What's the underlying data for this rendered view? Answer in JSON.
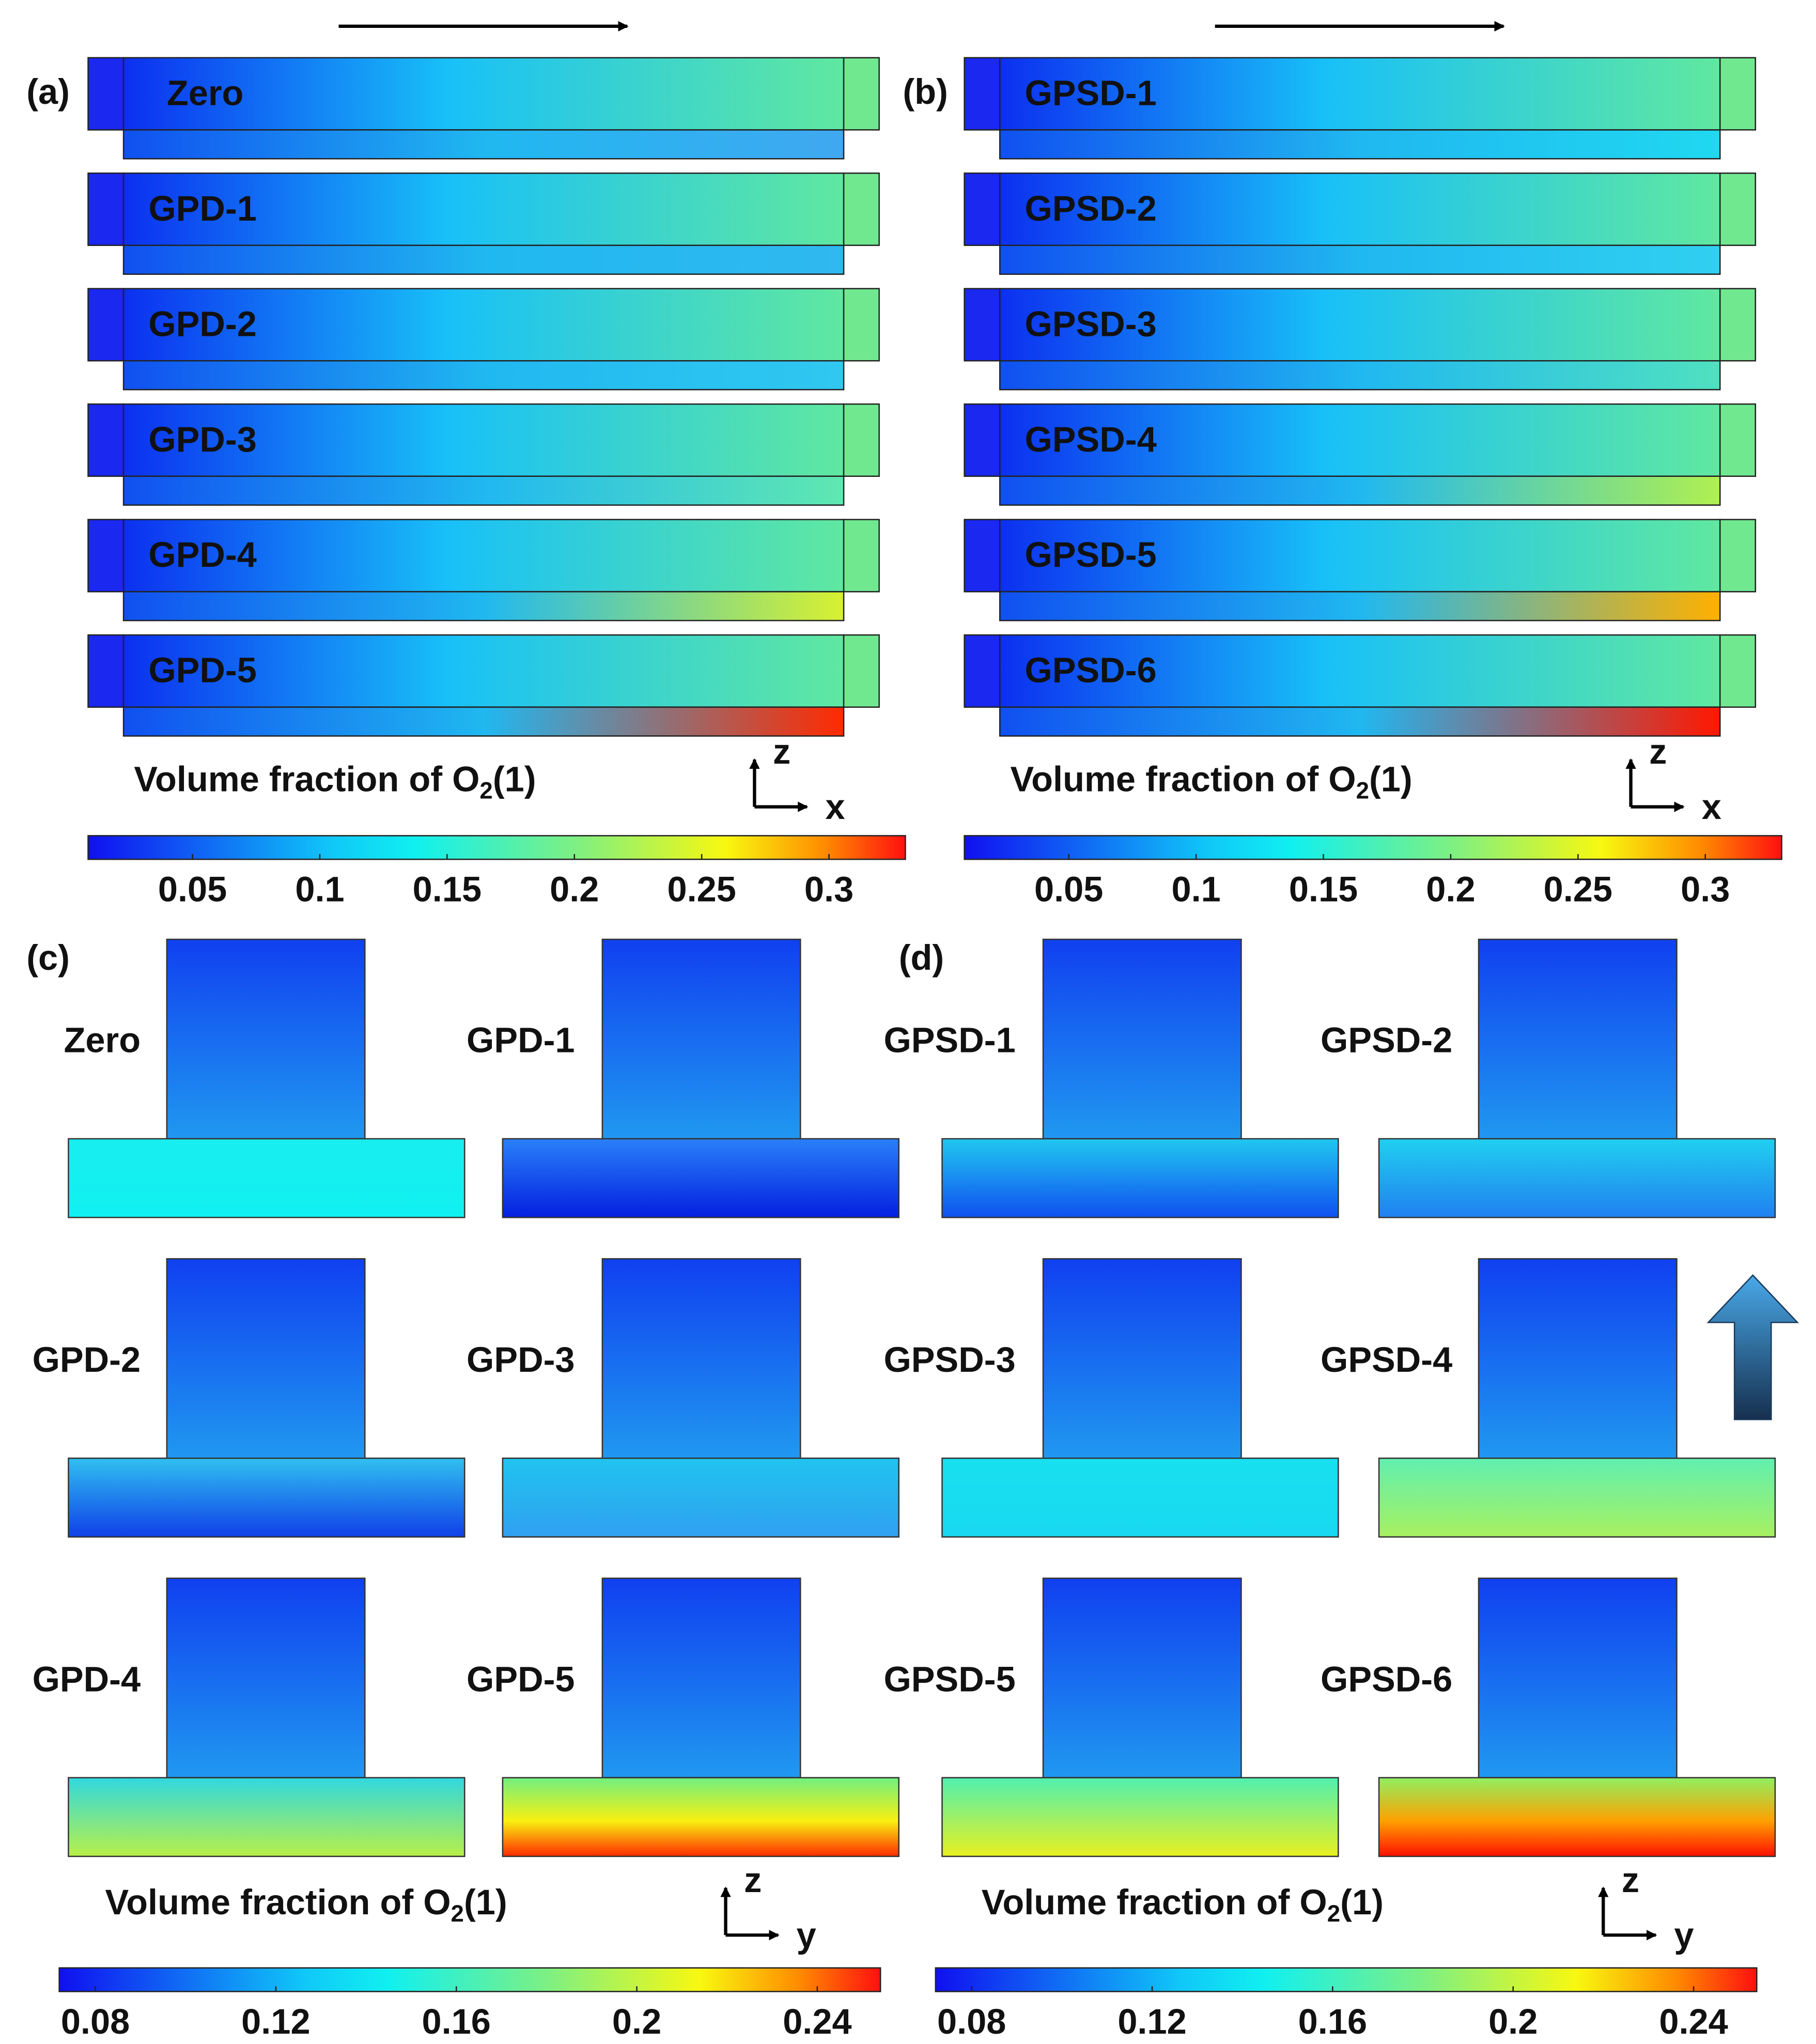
{
  "top_panels": [
    {
      "label": "(a)",
      "rows": [
        "Zero",
        "GPD-1",
        "GPD-2",
        "GPD-3",
        "GPD-4",
        "GPD-5"
      ]
    },
    {
      "label": "(b)",
      "rows": [
        "GPSD-1",
        "GPSD-2",
        "GPSD-3",
        "GPSD-4",
        "GPSD-5",
        "GPSD-6"
      ]
    }
  ],
  "top_legends": [
    {
      "title": {
        "text": "Volume fraction of O",
        "sub": "2",
        "tail": "(1)"
      },
      "axes": [
        "z",
        "x"
      ],
      "colorbar": {
        "range": [
          0.009,
          0.33
        ],
        "ticks": [
          0.05,
          0.1,
          0.15,
          0.2,
          0.25,
          0.3
        ]
      }
    },
    {
      "title": {
        "text": "Volume fraction of O",
        "sub": "2",
        "tail": "(1)"
      },
      "axes": [
        "z",
        "x"
      ],
      "colorbar": {
        "range": [
          0.009,
          0.33
        ],
        "ticks": [
          0.05,
          0.1,
          0.15,
          0.2,
          0.25,
          0.3
        ]
      }
    }
  ],
  "bottom_panels": [
    {
      "label": "(c)",
      "cases": [
        "Zero",
        "GPD-1",
        "GPD-2",
        "GPD-3",
        "GPD-4",
        "GPD-5"
      ]
    },
    {
      "label": "(d)",
      "cases": [
        "GPSD-1",
        "GPSD-2",
        "GPSD-3",
        "GPSD-4",
        "GPSD-5",
        "GPSD-6"
      ]
    }
  ],
  "bottom_legends": [
    {
      "title": {
        "text": "Volume fraction of O",
        "sub": "2",
        "tail": "(1)"
      },
      "axes": [
        "z",
        "y"
      ],
      "colorbar": {
        "range": [
          0.072,
          0.254
        ],
        "ticks": [
          0.08,
          0.12,
          0.16,
          0.2,
          0.24
        ]
      }
    },
    {
      "title": {
        "text": "Volume fraction of O",
        "sub": "2",
        "tail": "(1)"
      },
      "axes": [
        "z",
        "y"
      ],
      "colorbar": {
        "range": [
          0.072,
          0.254
        ],
        "ticks": [
          0.08,
          0.12,
          0.16,
          0.2,
          0.24
        ]
      }
    }
  ]
}
